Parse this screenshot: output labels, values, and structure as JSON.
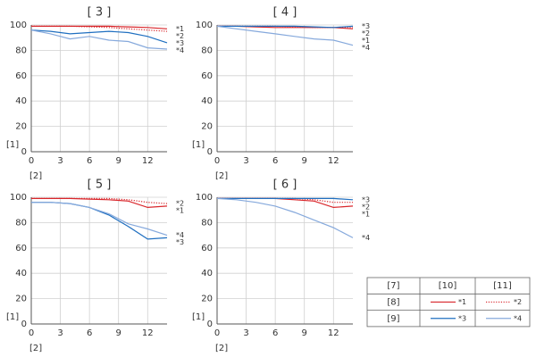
{
  "chart_data": [
    {
      "type": "line",
      "title": "[ 3 ]",
      "y_label": "[1]",
      "x_label": "[2]",
      "x": [
        0,
        2,
        4,
        6,
        8,
        10,
        12,
        14
      ],
      "xlim": [
        0,
        14
      ],
      "xticks": [
        0,
        3,
        6,
        9,
        12
      ],
      "ylim": [
        0,
        100
      ],
      "yticks": [
        0,
        20,
        40,
        60,
        80,
        100
      ],
      "grid": true,
      "series": [
        {
          "name": "*1",
          "color": "#d9262b",
          "style": "solid",
          "values": [
            99,
            99,
            99,
            99,
            99,
            98.5,
            98,
            97
          ]
        },
        {
          "name": "*2",
          "color": "#d9262b",
          "style": "dotted",
          "values": [
            99,
            99,
            99,
            98.5,
            98,
            97,
            96,
            95
          ]
        },
        {
          "name": "*3",
          "color": "#1f6fc0",
          "style": "solid",
          "values": [
            96,
            95,
            93,
            94,
            95,
            94,
            91,
            86
          ]
        },
        {
          "name": "*4",
          "color": "#86a9dc",
          "style": "solid",
          "values": [
            96,
            93,
            89,
            91,
            88,
            87,
            82,
            81
          ]
        }
      ]
    },
    {
      "type": "line",
      "title": "[ 4 ]",
      "y_label": "[1]",
      "x_label": "[2]",
      "x": [
        0,
        2,
        4,
        6,
        8,
        10,
        12,
        14
      ],
      "xlim": [
        0,
        14
      ],
      "xticks": [
        0,
        3,
        6,
        9,
        12
      ],
      "ylim": [
        0,
        100
      ],
      "yticks": [
        0,
        20,
        40,
        60,
        80,
        100
      ],
      "grid": true,
      "series": [
        {
          "name": "*1",
          "color": "#d9262b",
          "style": "solid",
          "values": [
            99,
            99,
            98.5,
            98,
            98,
            98,
            98,
            97
          ]
        },
        {
          "name": "*2",
          "color": "#d9262b",
          "style": "dotted",
          "values": [
            99,
            99,
            99,
            99,
            98.5,
            98,
            98,
            98
          ]
        },
        {
          "name": "*3",
          "color": "#1f6fc0",
          "style": "solid",
          "values": [
            99,
            99,
            99,
            99,
            99,
            98.5,
            98,
            99
          ]
        },
        {
          "name": "*4",
          "color": "#86a9dc",
          "style": "solid",
          "values": [
            99,
            97,
            95,
            93,
            91,
            89,
            88,
            84
          ]
        }
      ]
    },
    {
      "type": "line",
      "title": "[ 5 ]",
      "y_label": "[1]",
      "x_label": "[2]",
      "x": [
        0,
        2,
        4,
        6,
        8,
        10,
        12,
        14
      ],
      "xlim": [
        0,
        14
      ],
      "xticks": [
        0,
        3,
        6,
        9,
        12
      ],
      "ylim": [
        0,
        100
      ],
      "yticks": [
        0,
        20,
        40,
        60,
        80,
        100
      ],
      "grid": true,
      "series": [
        {
          "name": "*1",
          "color": "#d9262b",
          "style": "solid",
          "values": [
            99,
            99,
            99,
            98.5,
            98,
            97,
            92,
            93
          ]
        },
        {
          "name": "*2",
          "color": "#d9262b",
          "style": "dotted",
          "values": [
            99,
            99,
            99,
            99,
            99,
            98,
            96,
            95
          ]
        },
        {
          "name": "*3",
          "color": "#1f6fc0",
          "style": "solid",
          "values": [
            96,
            96,
            95,
            92,
            86,
            77,
            67,
            68
          ]
        },
        {
          "name": "*4",
          "color": "#86a9dc",
          "style": "solid",
          "values": [
            96,
            96,
            95,
            92,
            87,
            79,
            75,
            70
          ]
        }
      ]
    },
    {
      "type": "line",
      "title": "[ 6 ]",
      "y_label": "[1]",
      "x_label": "[2]",
      "x": [
        0,
        2,
        4,
        6,
        8,
        10,
        12,
        14
      ],
      "xlim": [
        0,
        14
      ],
      "xticks": [
        0,
        3,
        6,
        9,
        12
      ],
      "ylim": [
        0,
        100
      ],
      "yticks": [
        0,
        20,
        40,
        60,
        80,
        100
      ],
      "grid": true,
      "series": [
        {
          "name": "*1",
          "color": "#d9262b",
          "style": "solid",
          "values": [
            99,
            99,
            99,
            99,
            98,
            97,
            92,
            93
          ]
        },
        {
          "name": "*2",
          "color": "#d9262b",
          "style": "dotted",
          "values": [
            99,
            99,
            99,
            99,
            99,
            98,
            96,
            96
          ]
        },
        {
          "name": "*3",
          "color": "#1f6fc0",
          "style": "solid",
          "values": [
            99,
            99,
            99,
            99,
            99,
            99,
            99,
            98
          ]
        },
        {
          "name": "*4",
          "color": "#86a9dc",
          "style": "solid",
          "values": [
            99,
            98,
            96,
            93,
            88,
            82,
            76,
            68
          ]
        }
      ]
    }
  ],
  "legend_table": {
    "header": [
      "[7]",
      "[10]",
      "[11]"
    ],
    "rows": [
      "[8]",
      "[9]"
    ]
  }
}
